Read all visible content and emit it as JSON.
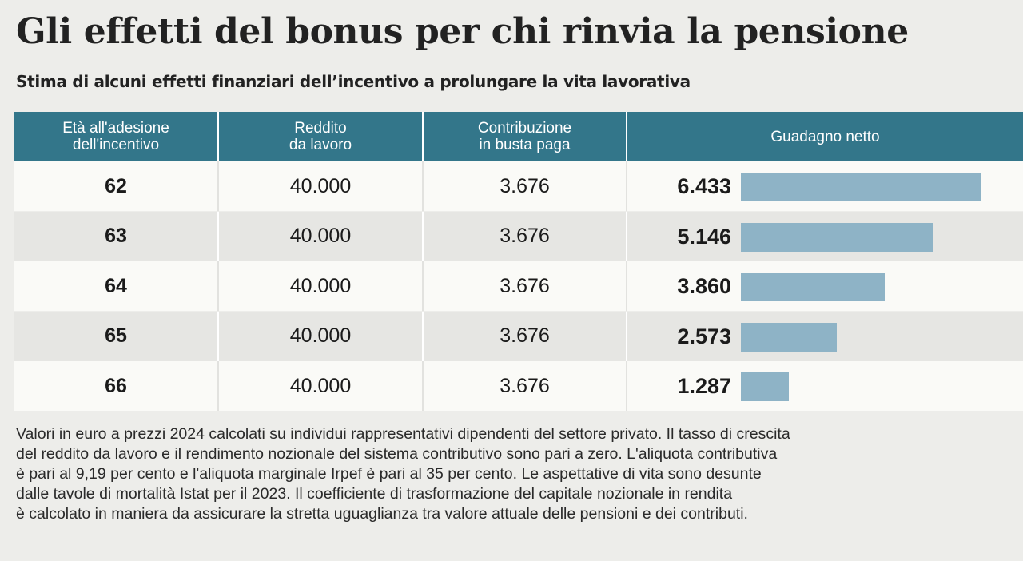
{
  "title": "Gli effetti del bonus per chi rinvia la pensione",
  "subtitle": "Stima di alcuni effetti finanziari dell’incentivo a prolungare la vita lavorativa",
  "chart_data": {
    "type": "table",
    "columns": [
      "Età all'adesione\ndell'incentivo",
      "Reddito\nda lavoro",
      "Contribuzione\nin busta paga",
      "Guadagno netto"
    ],
    "rows": [
      {
        "eta": "62",
        "reddito": "40.000",
        "contribuzione": "3.676",
        "guadagno": "6.433",
        "guadagno_value": 6433
      },
      {
        "eta": "63",
        "reddito": "40.000",
        "contribuzione": "3.676",
        "guadagno": "5.146",
        "guadagno_value": 5146
      },
      {
        "eta": "64",
        "reddito": "40.000",
        "contribuzione": "3.676",
        "guadagno": "3.860",
        "guadagno_value": 3860
      },
      {
        "eta": "65",
        "reddito": "40.000",
        "contribuzione": "3.676",
        "guadagno": "2.573",
        "guadagno_value": 2573
      },
      {
        "eta": "66",
        "reddito": "40.000",
        "contribuzione": "3.676",
        "guadagno": "1.287",
        "guadagno_value": 1287
      }
    ],
    "bar_color": "#8eb3c6",
    "header_color": "#33768a"
  },
  "note_lines": [
    "Valori in euro a prezzi 2024 calcolati su individui rappresentativi dipendenti del settore privato. Il tasso di crescita",
    "del reddito da lavoro e il rendimento nozionale del sistema contributivo sono pari a zero. L'aliquota contributiva",
    "è pari al 9,19 per cento e l'aliquota marginale Irpef è pari al 35 per cento. Le aspettative di vita sono desunte",
    "dalle tavole di mortalità Istat per il 2023. Il coefficiente di trasformazione del capitale nozionale in rendita",
    "è calcolato in maniera da assicurare la stretta uguaglianza tra valore attuale delle pensioni e dei contributi."
  ]
}
